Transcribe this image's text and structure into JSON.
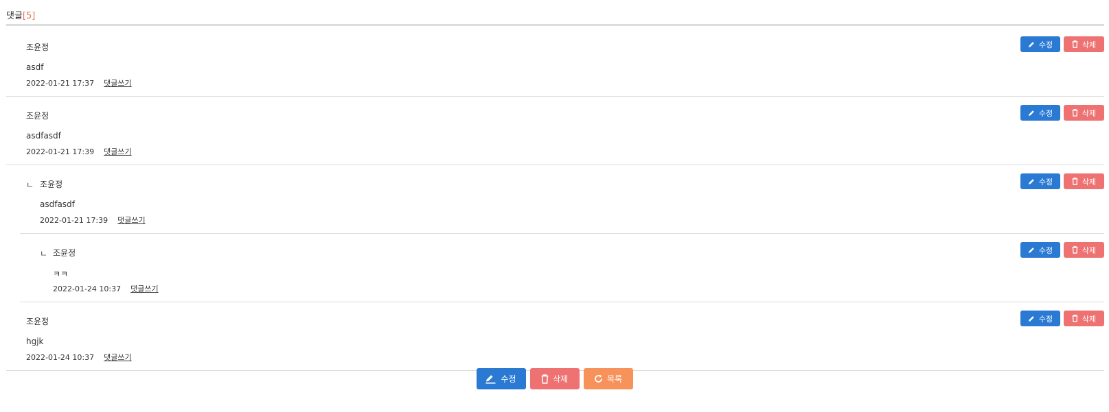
{
  "header": {
    "title": "댓글",
    "count": "[5]"
  },
  "comments": [
    {
      "depth": 0,
      "arrow": "",
      "author": "조윤정",
      "text": "asdf",
      "date": "2022-01-21 17:37",
      "reply_label": "댓글쓰기",
      "edit_label": "수정",
      "delete_label": "삭제"
    },
    {
      "depth": 0,
      "arrow": "",
      "author": "조윤정",
      "text": "asdfasdf",
      "date": "2022-01-21 17:39",
      "reply_label": "댓글쓰기",
      "edit_label": "수정",
      "delete_label": "삭제"
    },
    {
      "depth": 1,
      "arrow": "ㄴ",
      "author": "조윤정",
      "text": "asdfasdf",
      "date": "2022-01-21 17:39",
      "reply_label": "댓글쓰기",
      "edit_label": "수정",
      "delete_label": "삭제"
    },
    {
      "depth": 2,
      "arrow": "ㄴ",
      "author": "조윤정",
      "text": "ㅋㅋ",
      "date": "2022-01-24 10:37",
      "reply_label": "댓글쓰기",
      "edit_label": "수정",
      "delete_label": "삭제"
    },
    {
      "depth": 0,
      "arrow": "",
      "author": "조윤정",
      "text": "hgjk",
      "date": "2022-01-24 10:37",
      "reply_label": "댓글쓰기",
      "edit_label": "수정",
      "delete_label": "삭제"
    }
  ],
  "actions": {
    "edit_label": "수정",
    "delete_label": "삭제",
    "list_label": "목록"
  },
  "icons": {
    "edit": "pencil-icon",
    "delete": "trash-icon",
    "list": "refresh-icon"
  },
  "colors": {
    "edit": "#2a7ad4",
    "delete": "#ee7272",
    "list": "#f7925a",
    "count": "#e8745a"
  }
}
